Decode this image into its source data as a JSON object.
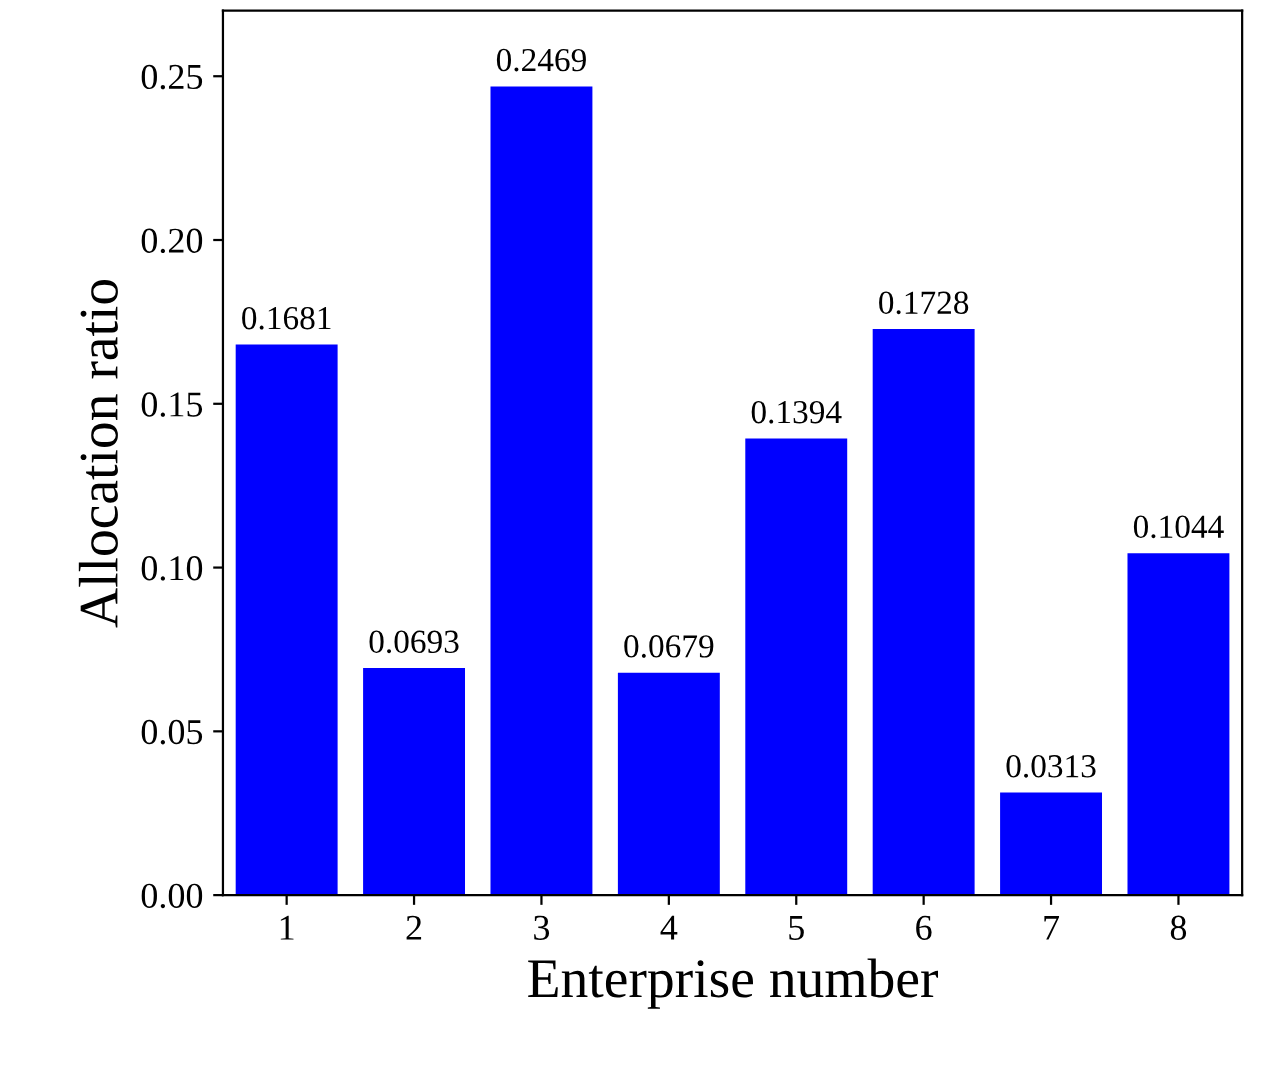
{
  "chart_data": {
    "type": "bar",
    "xlabel": "Enterprise number",
    "ylabel": "Allocation ratio",
    "categories": [
      "1",
      "2",
      "3",
      "4",
      "5",
      "6",
      "7",
      "8"
    ],
    "values": [
      0.1681,
      0.0693,
      0.2469,
      0.0679,
      0.1394,
      0.1728,
      0.0313,
      0.1044
    ],
    "color": "#0000ff",
    "ylim": [
      0,
      0.27
    ],
    "yticks": [
      {
        "value": 0,
        "label": "0.00"
      },
      {
        "value": 0.05,
        "label": "0.05"
      },
      {
        "value": 0.1,
        "label": "0.10"
      },
      {
        "value": 0.15,
        "label": "0.15"
      },
      {
        "value": 0.2,
        "label": "0.20"
      },
      {
        "value": 0.25,
        "label": "0.25"
      }
    ],
    "data_labels": true,
    "grid": false,
    "legend": false
  }
}
